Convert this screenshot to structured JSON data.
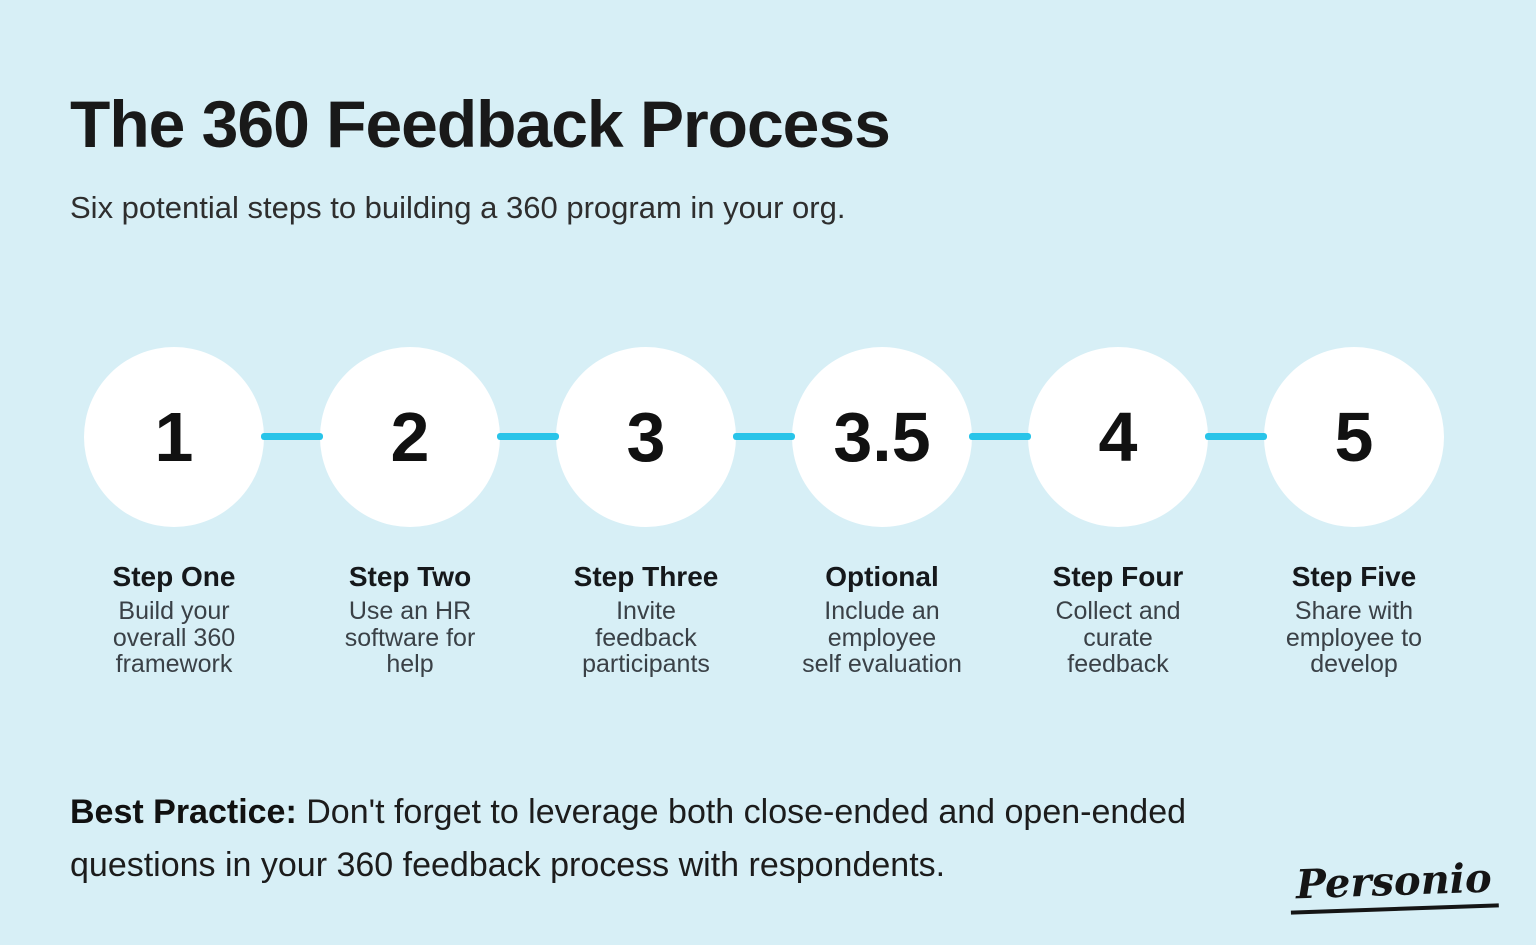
{
  "colors": {
    "background": "#d7eff6",
    "connector": "#29c4e9",
    "circle": "#ffffff",
    "title": "#191919"
  },
  "header": {
    "title": "The 360 Feedback Process",
    "subtitle": "Six potential steps to building a 360 program in your org."
  },
  "steps": [
    {
      "number": "1",
      "title": "Step One",
      "description": "Build your\noverall 360\nframework"
    },
    {
      "number": "2",
      "title": "Step Two",
      "description": "Use an HR\nsoftware for\nhelp"
    },
    {
      "number": "3",
      "title": "Step Three",
      "description": "Invite\nfeedback\nparticipants"
    },
    {
      "number": "3.5",
      "title": "Optional",
      "description": "Include an\nemployee\nself evaluation"
    },
    {
      "number": "4",
      "title": "Step Four",
      "description": "Collect and\ncurate\nfeedback"
    },
    {
      "number": "5",
      "title": "Step Five",
      "description": "Share with\nemployee to\ndevelop"
    }
  ],
  "best_practice": {
    "label": "Best Practice:",
    "text": " Don't forget to leverage both close-ended and open-ended\nquestions in your 360 feedback process with respondents."
  },
  "footer": {
    "logo": "Personio"
  }
}
